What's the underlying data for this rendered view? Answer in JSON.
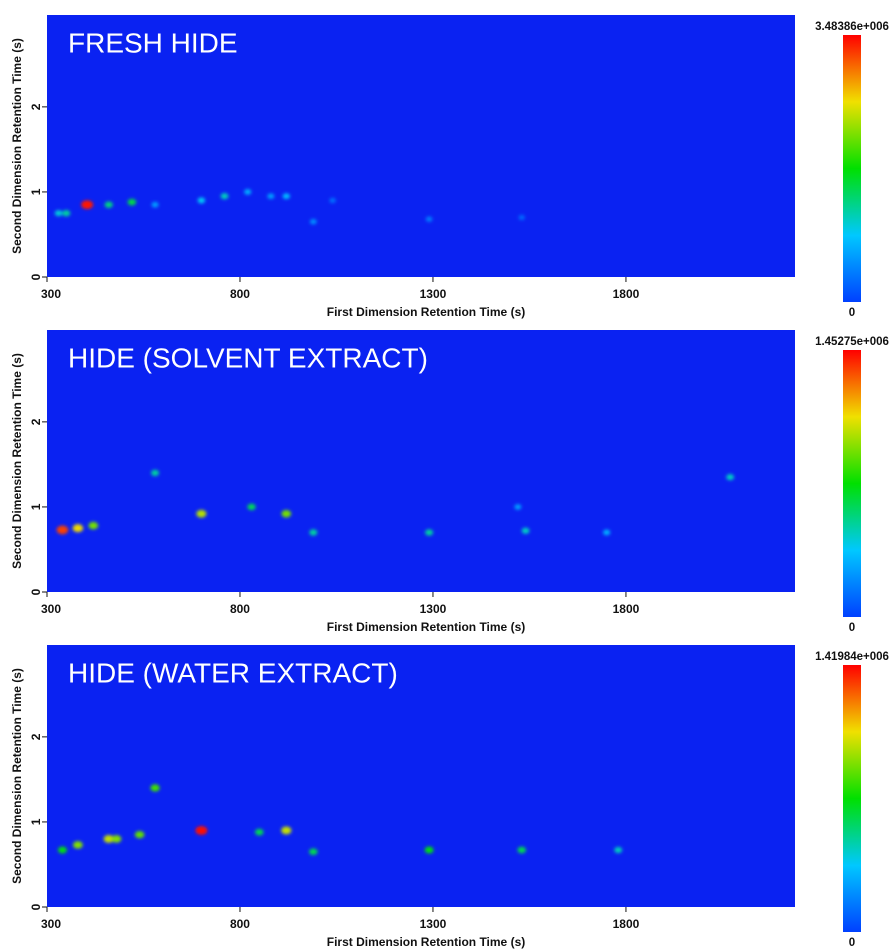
{
  "chart_data": [
    {
      "type": "heatmap",
      "title": "FRESH HIDE",
      "xlabel": "First Dimension Retention Time (s)",
      "ylabel": "Second Dimension Retention Time (s)",
      "xlim": [
        300,
        2238
      ],
      "ylim": [
        0,
        3.08
      ],
      "xticks": [
        300,
        800,
        1300,
        1800
      ],
      "yticks": [
        0,
        1,
        2
      ],
      "colorbar_lim": [
        0,
        3483860
      ],
      "colorbar_ticks": [
        0,
        {
          "value": 3483860,
          "label": "3.48386e+006"
        }
      ],
      "colormap": [
        "#0040ff",
        "#00c8ff",
        "#00e000",
        "#f0e000",
        "#ff0000"
      ],
      "background": "#0a22f2",
      "x": [
        404,
        330,
        350,
        460,
        520,
        580,
        700,
        760,
        820,
        880,
        920,
        990,
        1040,
        1290,
        1530
      ],
      "y": [
        0.85,
        0.75,
        0.75,
        0.85,
        0.88,
        0.85,
        0.9,
        0.95,
        1.0,
        0.95,
        0.95,
        0.65,
        0.9,
        0.68,
        0.7
      ],
      "values": [
        3400000,
        1000000,
        1200000,
        1300000,
        1500000,
        600000,
        900000,
        1100000,
        700000,
        600000,
        800000,
        500000,
        300000,
        400000,
        250000
      ]
    },
    {
      "type": "heatmap",
      "title": "HIDE (SOLVENT EXTRACT)",
      "xlabel": "First Dimension Retention Time (s)",
      "ylabel": "Second Dimension Retention Time (s)",
      "xlim": [
        300,
        2238
      ],
      "ylim": [
        0,
        3.08
      ],
      "xticks": [
        300,
        800,
        1300,
        1800
      ],
      "yticks": [
        0,
        1,
        2
      ],
      "colorbar_lim": [
        0,
        1452750
      ],
      "colorbar_ticks": [
        0,
        {
          "value": 1452750,
          "label": "1.45275e+006"
        }
      ],
      "colormap": [
        "#0040ff",
        "#00c8ff",
        "#00e000",
        "#f0e000",
        "#ff0000"
      ],
      "background": "#0a22f2",
      "x": [
        340,
        380,
        420,
        580,
        700,
        830,
        920,
        990,
        1290,
        1540,
        1520,
        2070,
        1750
      ],
      "y": [
        0.73,
        0.75,
        0.78,
        1.4,
        0.92,
        1.0,
        0.92,
        0.7,
        0.7,
        0.72,
        1.0,
        1.35,
        0.7
      ],
      "values": [
        1350000,
        1100000,
        900000,
        500000,
        1000000,
        600000,
        900000,
        500000,
        500000,
        450000,
        250000,
        450000,
        300000
      ]
    },
    {
      "type": "heatmap",
      "title": "HIDE (WATER EXTRACT)",
      "xlabel": "First Dimension Retention Time (s)",
      "ylabel": "Second Dimension Retention Time (s)",
      "xlim": [
        300,
        2238
      ],
      "ylim": [
        0,
        3.08
      ],
      "xticks": [
        300,
        800,
        1300,
        1800
      ],
      "yticks": [
        0,
        1,
        2
      ],
      "colorbar_lim": [
        0,
        1419840
      ],
      "colorbar_ticks": [
        0,
        {
          "value": 1419840,
          "label": "1.41984e+006"
        }
      ],
      "colormap": [
        "#0040ff",
        "#00c8ff",
        "#00e000",
        "#f0e000",
        "#ff0000"
      ],
      "background": "#0a22f2",
      "x": [
        340,
        380,
        460,
        480,
        540,
        580,
        700,
        850,
        920,
        990,
        1290,
        1530,
        1780
      ],
      "y": [
        0.67,
        0.73,
        0.8,
        0.8,
        0.85,
        1.4,
        0.9,
        0.88,
        0.9,
        0.65,
        0.67,
        0.67,
        0.67
      ],
      "values": [
        700000,
        900000,
        1000000,
        900000,
        850000,
        800000,
        1400000,
        600000,
        1000000,
        600000,
        700000,
        600000,
        450000
      ]
    }
  ]
}
